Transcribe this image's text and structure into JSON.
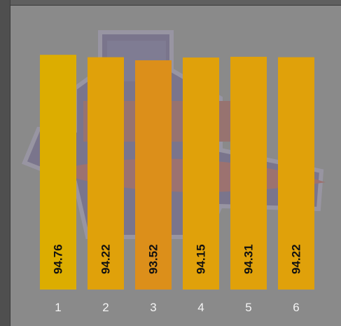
{
  "chart_data": {
    "type": "bar",
    "categories": [
      "1",
      "2",
      "3",
      "4",
      "5",
      "6"
    ],
    "values": [
      94.76,
      94.22,
      93.52,
      94.15,
      94.31,
      94.22
    ],
    "value_labels": [
      "94.76",
      "94.22",
      "93.52",
      "94.15",
      "94.31",
      "94.22"
    ],
    "colors": [
      "#dcad00",
      "#e0a10a",
      "#dc8f1a",
      "#e0a10a",
      "#e0a10a",
      "#e0a10a"
    ],
    "title": "",
    "xlabel": "",
    "ylabel": "",
    "grid": false,
    "legend": "none"
  },
  "colors": {
    "panel_background": "#8a8a8a",
    "window_background": "#5f5f5f",
    "tick_text": "#f4f4f4",
    "value_text": "#111111"
  }
}
